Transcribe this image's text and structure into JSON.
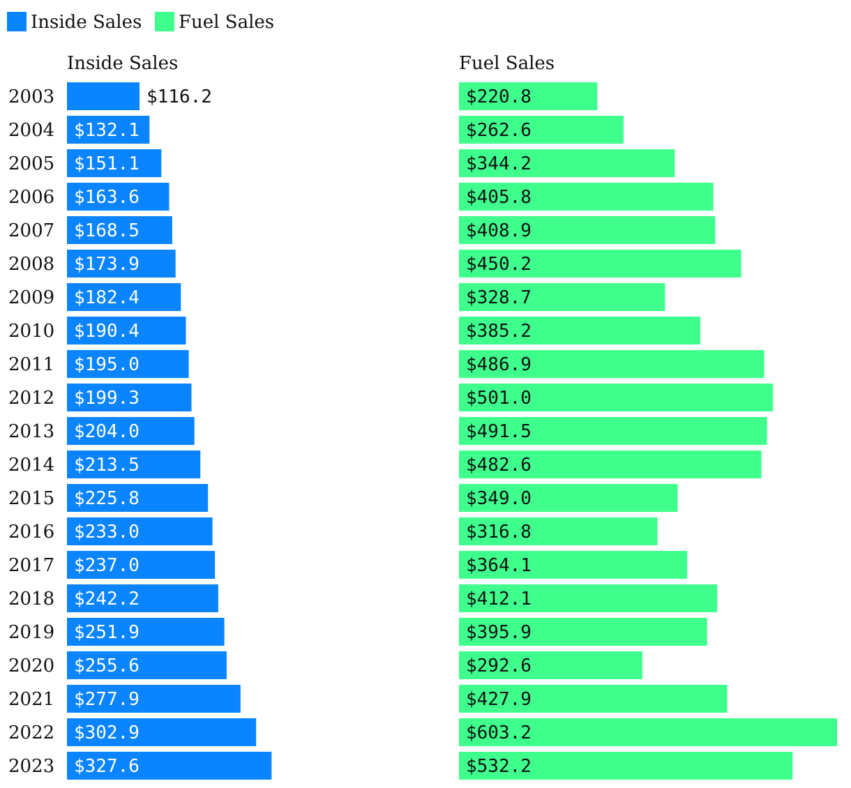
{
  "colors": {
    "inside": "#0A84FF",
    "fuel": "#3FFF8D",
    "text": "#111111",
    "label_on_inside": "#ffffff",
    "label_on_fuel": "#111111"
  },
  "legend": [
    {
      "label": "Inside Sales",
      "color": "#0A84FF"
    },
    {
      "label": "Fuel Sales",
      "color": "#3FFF8D"
    }
  ],
  "chart_data": {
    "type": "bar",
    "orientation": "horizontal",
    "legend_position": "top-left",
    "grid": false,
    "categories": [
      "2003",
      "2004",
      "2005",
      "2006",
      "2007",
      "2008",
      "2009",
      "2010",
      "2011",
      "2012",
      "2013",
      "2014",
      "2015",
      "2016",
      "2017",
      "2018",
      "2019",
      "2020",
      "2021",
      "2022",
      "2023"
    ],
    "series": [
      {
        "name": "Inside Sales",
        "title": "Inside Sales",
        "color": "#0A84FF",
        "values": [
          116.2,
          132.1,
          151.1,
          163.6,
          168.5,
          173.9,
          182.4,
          190.4,
          195.0,
          199.3,
          204.0,
          213.5,
          225.8,
          233.0,
          237.0,
          242.2,
          251.9,
          255.6,
          277.9,
          302.9,
          327.6
        ],
        "labels": [
          "$116.2",
          "$132.1",
          "$151.1",
          "$163.6",
          "$168.5",
          "$173.9",
          "$182.4",
          "$190.4",
          "$195.0",
          "$199.3",
          "$204.0",
          "$213.5",
          "$225.8",
          "$233.0",
          "$237.0",
          "$242.2",
          "$251.9",
          "$255.6",
          "$277.9",
          "$302.9",
          "$327.6"
        ]
      },
      {
        "name": "Fuel Sales",
        "title": "Fuel Sales",
        "color": "#3FFF8D",
        "values": [
          220.8,
          262.6,
          344.2,
          405.8,
          408.9,
          450.2,
          328.7,
          385.2,
          486.9,
          501.0,
          491.5,
          482.6,
          349.0,
          316.8,
          364.1,
          412.1,
          395.9,
          292.6,
          427.9,
          603.2,
          532.2
        ],
        "labels": [
          "$220.8",
          "$262.6",
          "$344.2",
          "$405.8",
          "$408.9",
          "$450.2",
          "$328.7",
          "$385.2",
          "$486.9",
          "$501.0",
          "$491.5",
          "$482.6",
          "$349.0",
          "$316.8",
          "$364.1",
          "$412.1",
          "$395.9",
          "$292.6",
          "$427.9",
          "$603.2",
          "$532.2"
        ]
      }
    ]
  }
}
